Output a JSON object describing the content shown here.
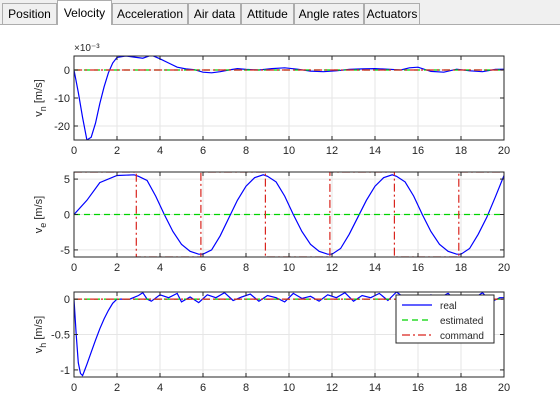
{
  "tabs": [
    {
      "label": "Position",
      "active": false
    },
    {
      "label": "Velocity",
      "active": true
    },
    {
      "label": "Acceleration",
      "active": false
    },
    {
      "label": "Air data",
      "active": false
    },
    {
      "label": "Attitude",
      "active": false
    },
    {
      "label": "Angle rates",
      "active": false
    },
    {
      "label": "Actuators",
      "active": false
    }
  ],
  "colors": {
    "real": "#0000ff",
    "estimated": "#00d400",
    "command": "#d9251e"
  },
  "chart_data": [
    {
      "type": "line",
      "ylabel": "v_n [m/s]",
      "exponent": "×10⁻³",
      "xlim": [
        0,
        20
      ],
      "ylim": [
        -25,
        5
      ],
      "xticks": [
        0,
        2,
        4,
        6,
        8,
        10,
        12,
        14,
        16,
        18,
        20
      ],
      "yticks": [
        -20,
        -10,
        0
      ],
      "grid": true,
      "series": [
        {
          "name": "real",
          "x": [
            0,
            0.2,
            0.4,
            0.6,
            0.8,
            1.0,
            1.2,
            1.4,
            1.6,
            1.8,
            2.0,
            2.4,
            2.8,
            3.2,
            3.6,
            4.0,
            4.4,
            4.8,
            5.2,
            5.6,
            6.0,
            6.4,
            6.8,
            7.2,
            7.6,
            8.0,
            8.6,
            9.2,
            9.8,
            10.4,
            11.0,
            11.6,
            12.2,
            12.8,
            13.4,
            14.0,
            14.6,
            15.2,
            15.6,
            16.0,
            16.6,
            17.2,
            17.8,
            18.4,
            19.0,
            19.6,
            20.0
          ],
          "y": [
            0,
            -8,
            -17,
            -25,
            -24,
            -19,
            -12,
            -6,
            -1,
            2.5,
            4.5,
            5,
            4.6,
            4.2,
            5.3,
            4,
            2.5,
            1,
            0.4,
            0.1,
            -0.8,
            -1,
            -0.6,
            0,
            0.5,
            0.2,
            0,
            0.5,
            0.8,
            0.3,
            -0.4,
            -0.6,
            -0.3,
            0.2,
            0.4,
            0.5,
            0.3,
            0,
            0.8,
            1,
            -0.5,
            -0.8,
            0.3,
            -0.3,
            -0.6,
            0.2,
            0.3
          ]
        },
        {
          "name": "estimated",
          "x": [
            0,
            20
          ],
          "y": [
            0,
            0
          ]
        },
        {
          "name": "command",
          "x": [
            0,
            20
          ],
          "y": [
            0,
            0
          ]
        }
      ]
    },
    {
      "type": "line",
      "ylabel": "v_e [m/s]",
      "xlim": [
        0,
        20
      ],
      "ylim": [
        -6,
        6
      ],
      "xticks": [
        0,
        2,
        4,
        6,
        8,
        10,
        12,
        14,
        16,
        18,
        20
      ],
      "yticks": [
        -5,
        0,
        5
      ],
      "grid": true,
      "series": [
        {
          "name": "real",
          "x": [
            0,
            0.6,
            1.2,
            2.0,
            2.8,
            3.0,
            3.4,
            3.8,
            4.2,
            4.6,
            5.0,
            5.4,
            5.8,
            6.0,
            6.4,
            6.8,
            7.2,
            7.6,
            8.0,
            8.4,
            8.8,
            9.0,
            9.4,
            9.8,
            10.2,
            10.6,
            11.0,
            11.4,
            11.8,
            12.0,
            12.4,
            12.8,
            13.2,
            13.6,
            14.0,
            14.4,
            14.8,
            15.0,
            15.4,
            15.8,
            16.2,
            16.6,
            17.0,
            17.4,
            17.8,
            18.0,
            18.4,
            18.8,
            19.2,
            19.6,
            20.0
          ],
          "y": [
            0,
            2,
            4.5,
            5.5,
            5.6,
            5.4,
            4.8,
            2.6,
            0,
            -2.4,
            -4.2,
            -5.2,
            -5.6,
            -5.6,
            -5,
            -3,
            -0.5,
            2,
            4,
            5.2,
            5.6,
            5.4,
            4.6,
            2.6,
            0,
            -2.4,
            -4.2,
            -5.2,
            -5.6,
            -5.6,
            -4.8,
            -2.8,
            -0.4,
            2,
            4,
            5.2,
            5.6,
            5.4,
            4.6,
            2.6,
            0,
            -2.4,
            -4.2,
            -5.2,
            -5.6,
            -5.6,
            -4.8,
            -2.8,
            -0.4,
            2.5,
            5.5
          ]
        },
        {
          "name": "estimated",
          "x": [
            0,
            20
          ],
          "y": [
            0,
            0
          ]
        },
        {
          "name": "command",
          "x": [
            0,
            2.9,
            2.9,
            5.9,
            5.9,
            8.9,
            8.9,
            11.9,
            11.9,
            14.9,
            14.9,
            17.9,
            17.9,
            20
          ],
          "y": [
            6,
            6,
            -6,
            -6,
            6,
            6,
            -6,
            -6,
            6,
            6,
            -6,
            -6,
            6,
            6
          ]
        }
      ]
    },
    {
      "type": "line",
      "ylabel": "v_h [m/s]",
      "xlim": [
        0,
        20
      ],
      "ylim": [
        -1.1,
        0.1
      ],
      "xticks": [
        0,
        2,
        4,
        6,
        8,
        10,
        12,
        14,
        16,
        18,
        20
      ],
      "yticks": [
        -1,
        -0.5,
        0
      ],
      "grid": true,
      "legend": {
        "position": "right",
        "entries": [
          "real",
          "estimated",
          "command"
        ]
      },
      "series": [
        {
          "name": "real",
          "x": [
            0,
            0.1,
            0.2,
            0.3,
            0.4,
            0.5,
            0.6,
            0.8,
            1.0,
            1.2,
            1.4,
            1.6,
            1.8,
            2.0,
            2.6,
            3.0,
            3.2,
            3.4,
            3.6,
            4.0,
            4.4,
            4.8,
            5.0,
            5.4,
            5.8,
            6.2,
            6.6,
            7.0,
            7.4,
            7.8,
            8.2,
            8.6,
            9.0,
            9.4,
            9.8,
            10.2,
            10.6,
            11.0,
            11.4,
            11.8,
            12.2,
            12.6,
            13.0,
            13.4,
            13.8,
            14.2,
            14.6,
            15.0,
            15.4,
            15.8,
            16.2,
            16.6,
            17.0,
            17.4,
            17.8,
            18.2,
            18.6,
            19.0,
            19.4,
            19.8,
            20.0
          ],
          "y": [
            0,
            -0.5,
            -0.9,
            -1.05,
            -1.08,
            -1.0,
            -0.92,
            -0.75,
            -0.58,
            -0.42,
            -0.28,
            -0.16,
            -0.06,
            0,
            0,
            0.05,
            0.09,
            0,
            -0.03,
            0.06,
            0.02,
            0.08,
            -0.04,
            0.03,
            -0.05,
            0.06,
            0.02,
            0.09,
            -0.02,
            0.03,
            0.07,
            -0.03,
            0.05,
            0.02,
            -0.04,
            0.08,
            0.01,
            0.04,
            -0.03,
            0.06,
            0.02,
            0.09,
            -0.03,
            0.05,
            0.02,
            0.08,
            -0.02,
            0.1,
            0.01,
            0.04,
            -0.03,
            0.06,
            0.02,
            0.08,
            -0.03,
            0.05,
            0.01,
            0.09,
            -0.04,
            0.02,
            0.02
          ]
        },
        {
          "name": "estimated",
          "x": [
            0,
            20
          ],
          "y": [
            0,
            0
          ]
        },
        {
          "name": "command",
          "x": [
            0,
            20
          ],
          "y": [
            0,
            0
          ]
        }
      ]
    }
  ]
}
